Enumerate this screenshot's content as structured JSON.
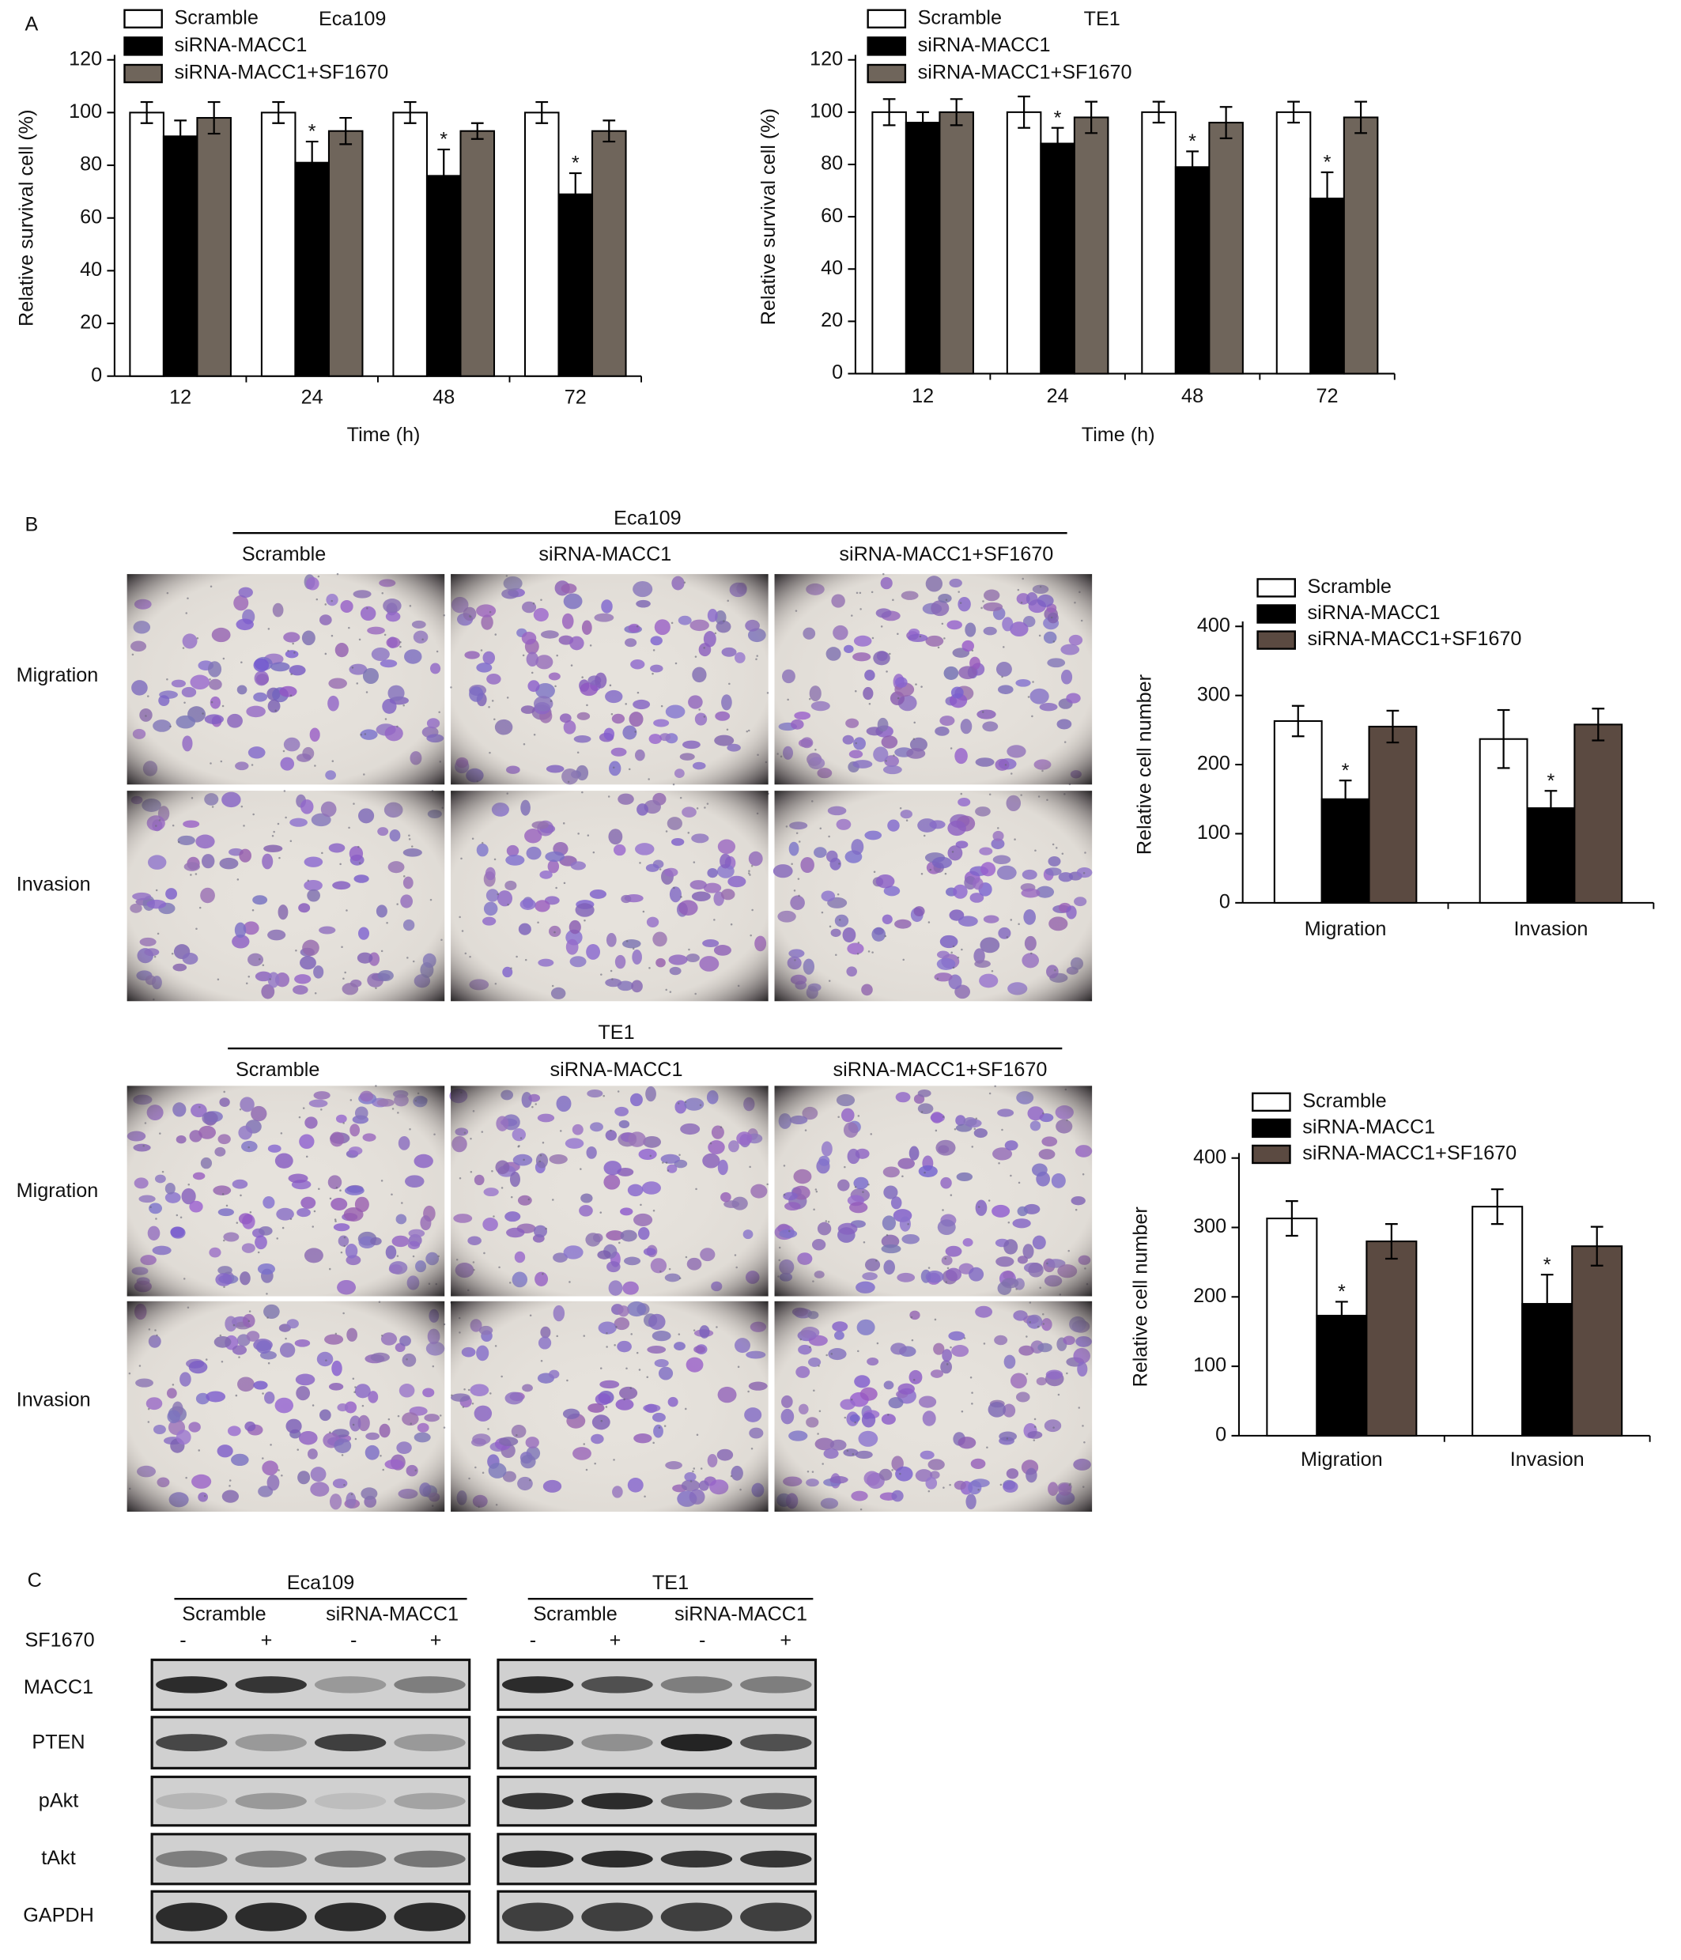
{
  "panel_labels": [
    "A",
    "B",
    "C"
  ],
  "chart_data": [
    {
      "type": "bar",
      "title": "Eca109",
      "categories": [
        "12",
        "24",
        "48",
        "72"
      ],
      "x_label": "Time (h)",
      "y_label": "Relative survival cell (%)",
      "ylim": [
        0,
        120
      ],
      "yticks": [
        0,
        20,
        40,
        60,
        80,
        100,
        120
      ],
      "legend": "top-left",
      "series": [
        {
          "name": "Scramble",
          "color": "#ffffff",
          "values": [
            100,
            100,
            100,
            100
          ],
          "errors": [
            4,
            4,
            4,
            4
          ]
        },
        {
          "name": "siRNA-MACC1",
          "color": "#000000",
          "values": [
            91,
            81,
            76,
            69
          ],
          "errors": [
            6,
            8,
            10,
            8
          ],
          "markers": [
            null,
            "*",
            "*",
            "*"
          ]
        },
        {
          "name": "siRNA-MACC1+SF1670",
          "color": "#6f655b",
          "values": [
            98,
            93,
            93,
            93
          ],
          "errors": [
            6,
            5,
            3,
            4
          ]
        }
      ]
    },
    {
      "type": "bar",
      "title": "TE1",
      "categories": [
        "12",
        "24",
        "48",
        "72"
      ],
      "x_label": "Time (h)",
      "y_label": "Relative survival cell (%)",
      "ylim": [
        0,
        120
      ],
      "yticks": [
        0,
        20,
        40,
        60,
        80,
        100,
        120
      ],
      "legend": "top-left",
      "series": [
        {
          "name": "Scramble",
          "color": "#ffffff",
          "values": [
            100,
            100,
            100,
            100
          ],
          "errors": [
            5,
            6,
            4,
            4
          ]
        },
        {
          "name": "siRNA-MACC1",
          "color": "#000000",
          "values": [
            96,
            88,
            79,
            67
          ],
          "errors": [
            4,
            6,
            6,
            10
          ],
          "markers": [
            null,
            "*",
            "*",
            "*"
          ]
        },
        {
          "name": "siRNA-MACC1+SF1670",
          "color": "#6f655b",
          "values": [
            100,
            98,
            96,
            98
          ],
          "errors": [
            5,
            6,
            6,
            6
          ]
        }
      ]
    },
    {
      "type": "bar",
      "categories": [
        "Migration",
        "Invasion"
      ],
      "y_label": "Relative cell number",
      "ylim": [
        0,
        400
      ],
      "yticks": [
        0,
        100,
        200,
        300,
        400
      ],
      "legend": "top-left",
      "series": [
        {
          "name": "Scramble",
          "color": "#ffffff",
          "values": [
            263,
            237
          ],
          "errors": [
            22,
            42
          ]
        },
        {
          "name": "siRNA-MACC1",
          "color": "#000000",
          "values": [
            150,
            137
          ],
          "errors": [
            27,
            25
          ],
          "markers": [
            "*",
            "*"
          ]
        },
        {
          "name": "siRNA-MACC1+SF1670",
          "color": "#5b4a41",
          "values": [
            255,
            258
          ],
          "errors": [
            23,
            23
          ]
        }
      ]
    },
    {
      "type": "bar",
      "categories": [
        "Migration",
        "Invasion"
      ],
      "y_label": "Relative cell number",
      "ylim": [
        0,
        400
      ],
      "yticks": [
        0,
        100,
        200,
        300,
        400
      ],
      "legend": "top-left",
      "series": [
        {
          "name": "Scramble",
          "color": "#ffffff",
          "values": [
            313,
            330
          ],
          "errors": [
            25,
            25
          ]
        },
        {
          "name": "siRNA-MACC1",
          "color": "#000000",
          "values": [
            173,
            190
          ],
          "errors": [
            20,
            42
          ],
          "markers": [
            "*",
            "*"
          ]
        },
        {
          "name": "siRNA-MACC1+SF1670",
          "color": "#5b4a41",
          "values": [
            280,
            273
          ],
          "errors": [
            25,
            28
          ]
        }
      ]
    }
  ],
  "migration_invasion": [
    {
      "cell_line": "Eca109",
      "columns": [
        "Scramble",
        "siRNA-MACC1",
        "siRNA-MACC1+SF1670"
      ],
      "rows": [
        "Migration",
        "Invasion"
      ]
    },
    {
      "cell_line": "TE1",
      "columns": [
        "Scramble",
        "siRNA-MACC1",
        "siRNA-MACC1+SF1670"
      ],
      "rows": [
        "Migration",
        "Invasion"
      ]
    }
  ],
  "western_blot": {
    "treatment_label": "SF1670",
    "proteins": [
      "MACC1",
      "PTEN",
      "pAkt",
      "tAkt",
      "GAPDH"
    ],
    "blots": [
      {
        "cell_line": "Eca109",
        "groups": [
          "Scramble",
          "siRNA-MACC1"
        ],
        "signs": [
          "-",
          "+",
          "-",
          "+"
        ]
      },
      {
        "cell_line": "TE1",
        "groups": [
          "Scramble",
          "siRNA-MACC1"
        ],
        "signs": [
          "-",
          "+",
          "-",
          "+"
        ]
      }
    ]
  }
}
